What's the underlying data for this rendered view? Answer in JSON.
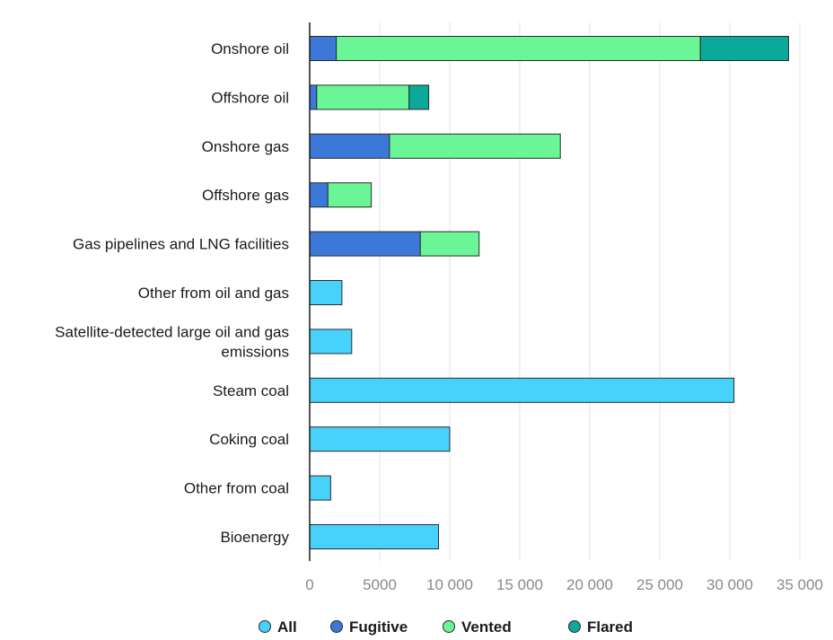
{
  "chart_data": {
    "type": "bar",
    "orientation": "horizontal",
    "stacked": true,
    "categories": [
      "Onshore oil",
      "Offshore oil",
      "Onshore gas",
      "Offshore gas",
      "Gas pipelines and LNG facilities",
      "Other from oil and gas",
      "Satellite-detected large oil and gas emissions",
      "Steam coal",
      "Coking coal",
      "Other from coal",
      "Bioenergy"
    ],
    "series": [
      {
        "name": "All",
        "color": "#46d2fb",
        "values": [
          0,
          0,
          0,
          0,
          0,
          2300,
          3000,
          30300,
          10000,
          1500,
          9200
        ]
      },
      {
        "name": "Fugitive",
        "color": "#3c78d8",
        "values": [
          1900,
          500,
          5700,
          1300,
          7900,
          0,
          0,
          0,
          0,
          0,
          0
        ]
      },
      {
        "name": "Vented",
        "color": "#6af596",
        "values": [
          26000,
          6600,
          12200,
          3100,
          4200,
          0,
          0,
          0,
          0,
          0,
          0
        ]
      },
      {
        "name": "Flared",
        "color": "#0ca89a",
        "values": [
          6300,
          1400,
          0,
          0,
          0,
          0,
          0,
          0,
          0,
          0,
          0
        ]
      }
    ],
    "xlim": [
      0,
      35000
    ],
    "xticks": [
      "0",
      "5000",
      "10 000",
      "15 000",
      "20 000",
      "25 000",
      "30 000",
      "35 000"
    ],
    "xtick_values": [
      0,
      5000,
      10000,
      15000,
      20000,
      25000,
      30000,
      35000
    ],
    "grid": "vertical",
    "legend": "bottom"
  }
}
